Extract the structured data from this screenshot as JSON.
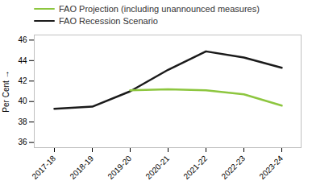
{
  "chart_data": {
    "type": "line",
    "categories": [
      "2017-18",
      "2018-19",
      "2019-20",
      "2020-21",
      "2021-22",
      "2022-23",
      "2023-24"
    ],
    "series": [
      {
        "name": "FAO Projection (including unannounced measures)",
        "color": "#8dc63f",
        "values": [
          null,
          null,
          41.1,
          41.2,
          41.1,
          40.7,
          39.6
        ]
      },
      {
        "name": "FAO Recession Scenario",
        "color": "#1a1a1a",
        "values": [
          39.3,
          39.5,
          41.0,
          43.1,
          44.9,
          44.3,
          43.3
        ]
      }
    ],
    "ylabel": "Per Cent",
    "ylim": [
      35.5,
      46.5
    ],
    "yticks": [
      36,
      38,
      40,
      42,
      44,
      46
    ],
    "legend": "top",
    "grid": false
  }
}
